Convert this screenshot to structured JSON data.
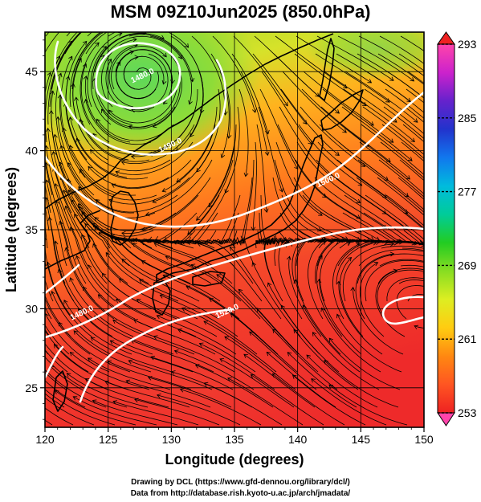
{
  "title": "MSM 09Z10Jun2025 (850.0hPa)",
  "x_axis": {
    "label": "Longitude (degrees)",
    "range": [
      120,
      150
    ],
    "ticks": [
      120,
      125,
      130,
      135,
      140,
      145,
      150
    ]
  },
  "y_axis": {
    "label": "Latitude  (degrees)",
    "range": [
      22.5,
      47.5
    ],
    "ticks": [
      25,
      30,
      35,
      40,
      45
    ]
  },
  "colorbar": {
    "range": [
      253,
      293
    ],
    "ticks": [
      293,
      285,
      277,
      269,
      261,
      253
    ],
    "colors": [
      "#ff44aa",
      "#cc22cc",
      "#6622cc",
      "#2233cc",
      "#1177ee",
      "#00bbdd",
      "#00cc99",
      "#22cc22",
      "#88dd22",
      "#ddee22",
      "#ffcc11",
      "#ff8811",
      "#ff5522",
      "#ee2222"
    ]
  },
  "contours": [
    {
      "label": "1480.0",
      "lon": 127.8,
      "lat": 44.6
    },
    {
      "label": "1490.0",
      "lon": 130.0,
      "lat": 40.2
    },
    {
      "label": "1500.0",
      "lon": 142.5,
      "lat": 38.0
    },
    {
      "label": "1480.0",
      "lon": 123.0,
      "lat": 29.6
    },
    {
      "label": "1520.0",
      "lon": 134.5,
      "lat": 29.7
    }
  ],
  "credits": [
    "Drawing by DCL (https://www.gfd-dennou.org/library/dcl/)",
    "Data from http://database.rish.kyoto-u.ac.jp/arch/jmadata/"
  ]
}
